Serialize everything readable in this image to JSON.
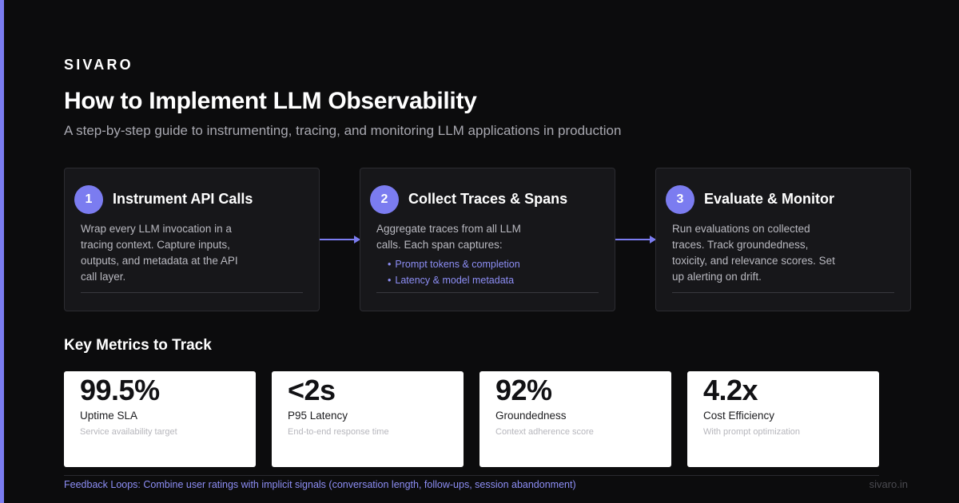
{
  "brand": "SIVARO",
  "title": "How to Implement LLM Observability",
  "subtitle": "A step-by-step guide to instrumenting, tracing, and monitoring LLM applications in production",
  "steps": [
    {
      "number": "1",
      "title": "Instrument API Calls",
      "description": "Wrap every LLM invocation in a tracing context. Capture inputs, outputs, and metadata at the API call layer.",
      "bullets": []
    },
    {
      "number": "2",
      "title": "Collect Traces & Spans",
      "description": "Aggregate traces from all LLM calls. Each span captures:",
      "bullets": [
        "Prompt tokens & completion",
        "Latency & model metadata"
      ]
    },
    {
      "number": "3",
      "title": "Evaluate & Monitor",
      "description": "Run evaluations on collected traces. Track groundedness, toxicity, and relevance scores. Set up alerting on drift.",
      "bullets": []
    }
  ],
  "metrics_title": "Key Metrics to Track",
  "metrics": [
    {
      "value": "99.5%",
      "label": "Uptime SLA",
      "sub": "Service availability target"
    },
    {
      "value": "<2s",
      "label": "P95 Latency",
      "sub": "End-to-end response time"
    },
    {
      "value": "92%",
      "label": "Groundedness",
      "sub": "Context adherence score"
    },
    {
      "value": "4.2x",
      "label": "Cost Efficiency",
      "sub": "With prompt optimization"
    }
  ],
  "footer": {
    "note": "Feedback Loops: Combine user ratings with implicit signals (conversation length, follow-ups, session abandonment)",
    "domain": "sivaro.in"
  },
  "colors": {
    "accent": "#7b7cf0",
    "background": "#0c0c0d",
    "card": "#17171a"
  }
}
